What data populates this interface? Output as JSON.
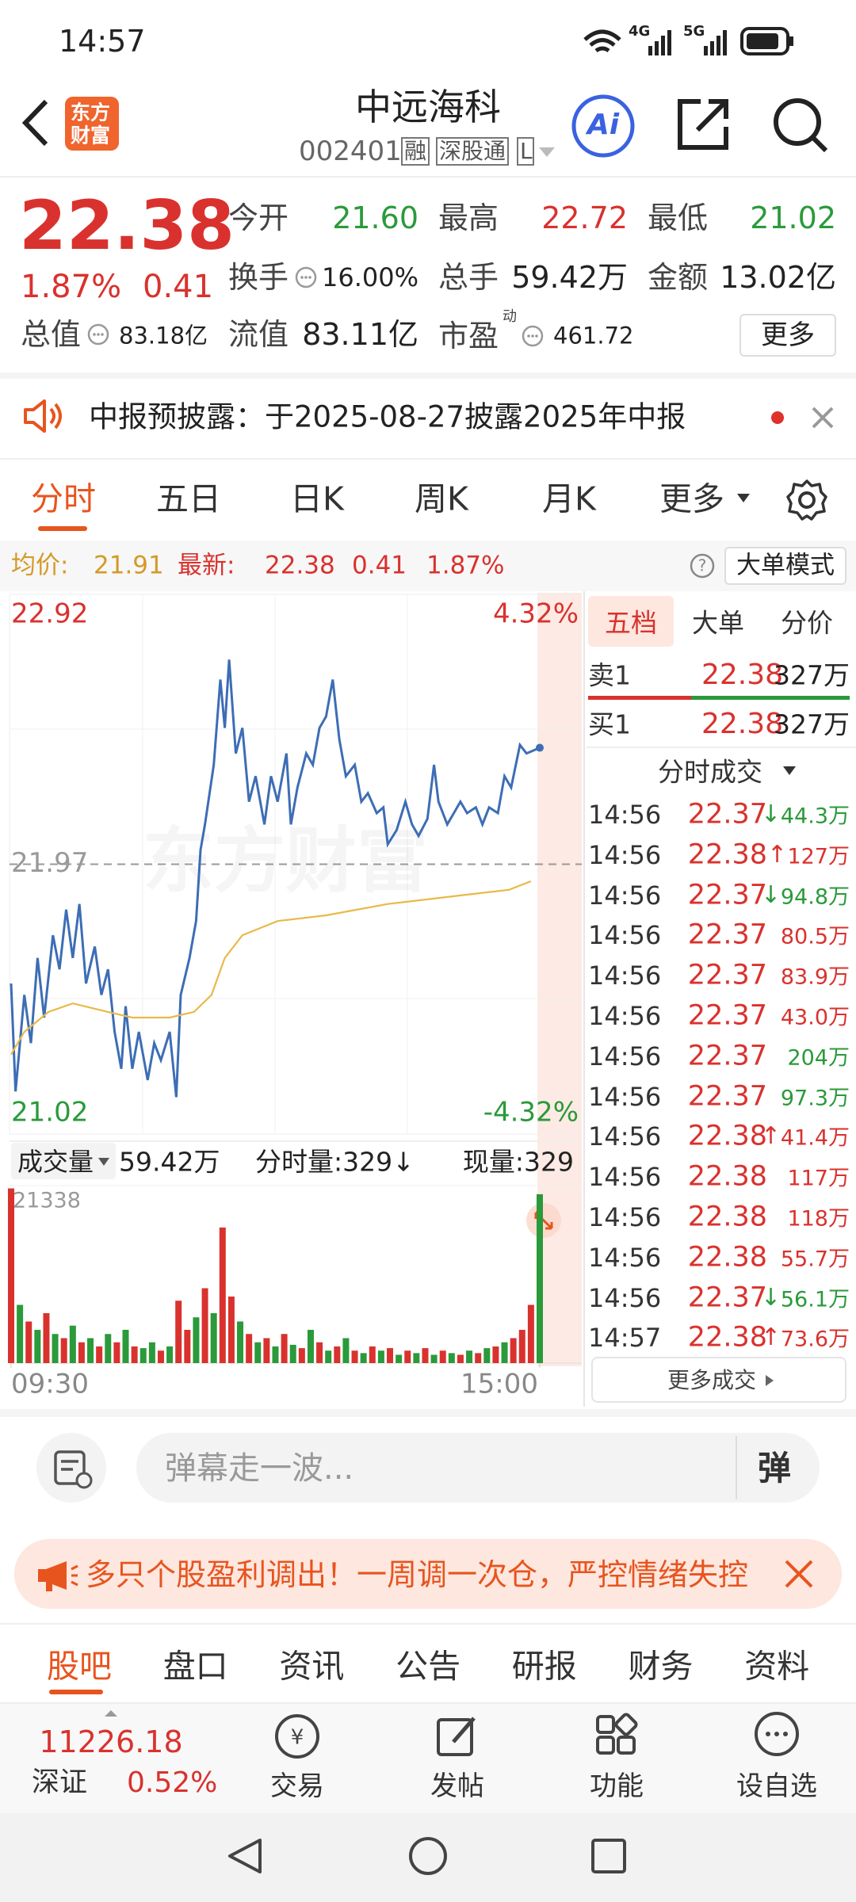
{
  "status_bar": {
    "time": "14:57",
    "net1": "4G",
    "net2": "5G"
  },
  "header": {
    "logo_line1": "东方",
    "logo_line2": "财富",
    "title": "中远海科",
    "code": "002401",
    "tags": [
      "融",
      "深股通",
      "L"
    ],
    "ai": "Ai"
  },
  "quote": {
    "price": "22.38",
    "change_pct": "1.87%",
    "change": "0.41",
    "open": {
      "label": "今开",
      "value": "21.60"
    },
    "high": {
      "label": "最高",
      "value": "22.72"
    },
    "low": {
      "label": "最低",
      "value": "21.02"
    },
    "turnover": {
      "label": "换手",
      "value": "16.00%"
    },
    "volume": {
      "label": "总手",
      "value": "59.42万"
    },
    "amount": {
      "label": "金额",
      "value": "13.02亿"
    },
    "market_cap": {
      "label": "总值",
      "value": "83.18亿"
    },
    "float_cap": {
      "label": "流值",
      "value": "83.11亿"
    },
    "pe": {
      "label": "市盈",
      "sup": "动",
      "value": "461.72"
    },
    "more": "更多"
  },
  "notice": {
    "text": "中报预披露：于2025-08-27披露2025年中报"
  },
  "tabs": [
    "分时",
    "五日",
    "日K",
    "周K",
    "月K",
    "更多"
  ],
  "info_bar": {
    "avg_label": "均价:",
    "avg": "21.91",
    "latest_label": "最新:",
    "latest": "22.38",
    "change": "0.41",
    "change_pct": "1.87%",
    "mode": "大单模式"
  },
  "chart_data": {
    "type": "line",
    "watermark": "东方财富",
    "xlim": [
      0,
      240
    ],
    "xticks": [
      {
        "value": 0,
        "label": "09:30"
      },
      {
        "value": 240,
        "label": "15:00"
      }
    ],
    "ylim": [
      21.02,
      22.92
    ],
    "yticks": [
      21.02,
      21.97,
      22.92
    ],
    "pct_labels": [
      "4.32%",
      "-4.32%"
    ],
    "series": [
      {
        "color": "#3d6db5",
        "x": [
          0,
          2,
          6,
          9,
          12,
          15,
          19,
          22,
          25,
          28,
          31,
          34,
          38,
          41,
          44,
          47,
          50,
          52,
          55,
          58,
          62,
          65,
          68,
          72,
          75,
          77,
          81,
          84,
          86,
          88,
          92,
          95,
          97,
          99,
          102,
          105,
          108,
          111,
          115,
          118,
          121,
          125,
          127,
          130,
          134,
          137,
          140,
          143,
          146,
          149,
          152,
          156,
          159,
          162,
          166,
          169,
          171,
          175,
          179,
          182,
          185,
          189,
          192,
          194,
          198,
          201,
          204,
          207,
          211,
          214,
          217,
          221,
          224,
          227,
          231,
          234,
          237,
          240
        ],
        "values": [
          21.55,
          21.17,
          21.51,
          21.34,
          21.64,
          21.43,
          21.72,
          21.6,
          21.81,
          21.64,
          21.83,
          21.55,
          21.68,
          21.51,
          21.6,
          21.38,
          21.25,
          21.47,
          21.25,
          21.38,
          21.21,
          21.34,
          21.28,
          21.38,
          21.15,
          21.51,
          21.64,
          21.77,
          22.02,
          22.11,
          22.32,
          22.62,
          22.45,
          22.69,
          22.36,
          22.45,
          22.19,
          22.28,
          22.11,
          22.28,
          22.19,
          22.36,
          22.11,
          22.24,
          22.36,
          22.32,
          22.45,
          22.49,
          22.62,
          22.41,
          22.28,
          22.32,
          22.19,
          22.22,
          22.15,
          22.17,
          22.04,
          22.09,
          22.19,
          22.11,
          22.07,
          22.13,
          22.32,
          22.19,
          22.11,
          22.15,
          22.19,
          22.15,
          22.17,
          22.11,
          22.17,
          22.15,
          22.28,
          22.24,
          22.39,
          22.36,
          22.37,
          22.38
        ]
      },
      {
        "color": "#e9b949",
        "x": [
          0,
          6,
          17,
          28,
          44,
          55,
          72,
          83,
          91,
          97,
          105,
          121,
          143,
          171,
          204,
          226,
          236
        ],
        "values": [
          21.3,
          21.38,
          21.45,
          21.48,
          21.45,
          21.43,
          21.43,
          21.45,
          21.51,
          21.64,
          21.72,
          21.77,
          21.79,
          21.83,
          21.86,
          21.88,
          21.91
        ]
      }
    ]
  },
  "volume_chart": {
    "type": "bar",
    "label": "成交量",
    "total": "59.42万",
    "minute_label": "分时量:329↓",
    "current": "现量:329",
    "ylim": [
      0,
      21338
    ],
    "yticks": [
      21338
    ],
    "x": [
      0,
      4,
      8,
      12,
      16,
      20,
      24,
      28,
      32,
      36,
      40,
      44,
      48,
      52,
      56,
      60,
      64,
      68,
      72,
      76,
      80,
      84,
      88,
      92,
      96,
      100,
      104,
      108,
      112,
      116,
      120,
      124,
      128,
      132,
      136,
      140,
      144,
      148,
      152,
      156,
      160,
      164,
      168,
      172,
      176,
      180,
      184,
      188,
      192,
      196,
      200,
      204,
      208,
      212,
      216,
      220,
      224,
      228,
      232,
      236,
      240
    ],
    "values": [
      21000,
      7000,
      5000,
      4000,
      6000,
      3500,
      3000,
      4500,
      2500,
      3000,
      2000,
      3500,
      2500,
      4000,
      2000,
      1800,
      2500,
      1500,
      2000,
      7500,
      4000,
      5500,
      9000,
      6000,
      16300,
      8000,
      5000,
      3500,
      2500,
      3000,
      2000,
      3500,
      2200,
      1800,
      4000,
      2500,
      1500,
      2000,
      3000,
      1500,
      1200,
      2000,
      1500,
      1800,
      1000,
      1500,
      1200,
      1800,
      1000,
      1500,
      1200,
      1000,
      1500,
      1200,
      1800,
      2000,
      2500,
      3000,
      4000,
      7000,
      20300
    ],
    "colors": [
      "#d9322e",
      "#2a9a3a",
      "#d9322e",
      "#2a9a3a",
      "#d9322e",
      "#2a9a3a",
      "#d9322e",
      "#2a9a3a",
      "#d9322e",
      "#2a9a3a",
      "#d9322e",
      "#2a9a3a",
      "#d9322e",
      "#2a9a3a",
      "#d9322e",
      "#2a9a3a",
      "#2a9a3a",
      "#d9322e",
      "#2a9a3a",
      "#d9322e",
      "#d9322e",
      "#2a9a3a",
      "#d9322e",
      "#2a9a3a",
      "#d9322e",
      "#d9322e",
      "#2a9a3a",
      "#d9322e",
      "#2a9a3a",
      "#d9322e",
      "#2a9a3a",
      "#d9322e",
      "#2a9a3a",
      "#d9322e",
      "#2a9a3a",
      "#d9322e",
      "#2a9a3a",
      "#d9322e",
      "#2a9a3a",
      "#d9322e",
      "#2a9a3a",
      "#d9322e",
      "#2a9a3a",
      "#d9322e",
      "#2a9a3a",
      "#d9322e",
      "#2a9a3a",
      "#d9322e",
      "#2a9a3a",
      "#d9322e",
      "#2a9a3a",
      "#d9322e",
      "#2a9a3a",
      "#d9322e",
      "#2a9a3a",
      "#d9322e",
      "#2a9a3a",
      "#d9322e",
      "#d9322e",
      "#d9322e",
      "#2a9a3a"
    ]
  },
  "order_book": {
    "tabs": [
      "五档",
      "大单",
      "分价"
    ],
    "rows": [
      {
        "label": "卖1",
        "price": "22.38",
        "volume": "327万"
      },
      {
        "label": "买1",
        "price": "22.38",
        "volume": "327万"
      }
    ],
    "trades_title": "分时成交",
    "trades": [
      {
        "time": "14:56",
        "price": "22.37",
        "dir": "↓",
        "volume": "44.3万",
        "color": "#2a9a3a"
      },
      {
        "time": "14:56",
        "price": "22.38",
        "dir": "↑",
        "volume": "127万",
        "color": "#d9322e"
      },
      {
        "time": "14:56",
        "price": "22.37",
        "dir": "↓",
        "volume": "94.8万",
        "color": "#2a9a3a"
      },
      {
        "time": "14:56",
        "price": "22.37",
        "volume": "80.5万",
        "color": "#d9322e"
      },
      {
        "time": "14:56",
        "price": "22.37",
        "volume": "83.9万",
        "color": "#d9322e"
      },
      {
        "time": "14:56",
        "price": "22.37",
        "volume": "43.0万",
        "color": "#d9322e"
      },
      {
        "time": "14:56",
        "price": "22.37",
        "volume": "204万",
        "color": "#2a9a3a"
      },
      {
        "time": "14:56",
        "price": "22.37",
        "volume": "97.3万",
        "color": "#2a9a3a"
      },
      {
        "time": "14:56",
        "price": "22.38",
        "dir": "↑",
        "volume": "41.4万",
        "color": "#d9322e"
      },
      {
        "time": "14:56",
        "price": "22.38",
        "volume": "117万",
        "color": "#d9322e"
      },
      {
        "time": "14:56",
        "price": "22.38",
        "volume": "118万",
        "color": "#d9322e"
      },
      {
        "time": "14:56",
        "price": "22.38",
        "volume": "55.7万",
        "color": "#d9322e"
      },
      {
        "time": "14:56",
        "price": "22.37",
        "dir": "↓",
        "volume": "56.1万",
        "color": "#2a9a3a"
      },
      {
        "time": "14:57",
        "price": "22.38",
        "dir": "↑",
        "volume": "73.6万",
        "color": "#d9322e"
      }
    ],
    "more": "更多成交"
  },
  "comment": {
    "placeholder": "弹幕走一波...",
    "button": "弹"
  },
  "banner": {
    "text": "多只个股盈利调出！一周调一次仓，严控情绪失控"
  },
  "bottom_tabs": [
    "股吧",
    "盘口",
    "资讯",
    "公告",
    "研报",
    "财务",
    "资料"
  ],
  "index": {
    "value": "11226.18",
    "name": "深证",
    "change": "0.52%"
  },
  "actions": [
    "交易",
    "发帖",
    "功能",
    "设自选"
  ]
}
